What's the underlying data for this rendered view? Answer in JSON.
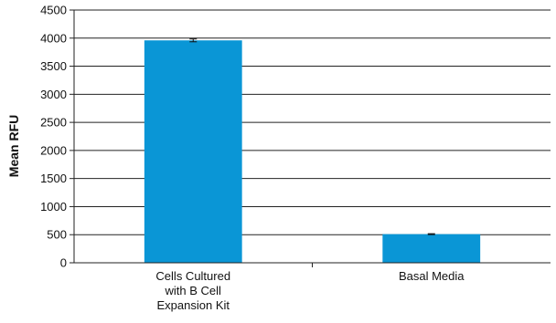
{
  "chart_data": {
    "type": "bar",
    "title": "",
    "xlabel": "",
    "ylabel": "Mean RFU",
    "ylim": [
      0,
      4500
    ],
    "yticks": [
      0,
      500,
      1000,
      1500,
      2000,
      2500,
      3000,
      3500,
      4000,
      4500
    ],
    "grid": true,
    "legend": "none",
    "categories": [
      [
        "Cells Cultured",
        "with B Cell",
        "Expansion Kit"
      ],
      [
        "Basal Media"
      ]
    ],
    "series": [
      {
        "values": [
          3960,
          510
        ],
        "errors": [
          25,
          8
        ],
        "color": "#0a96d6"
      }
    ]
  }
}
